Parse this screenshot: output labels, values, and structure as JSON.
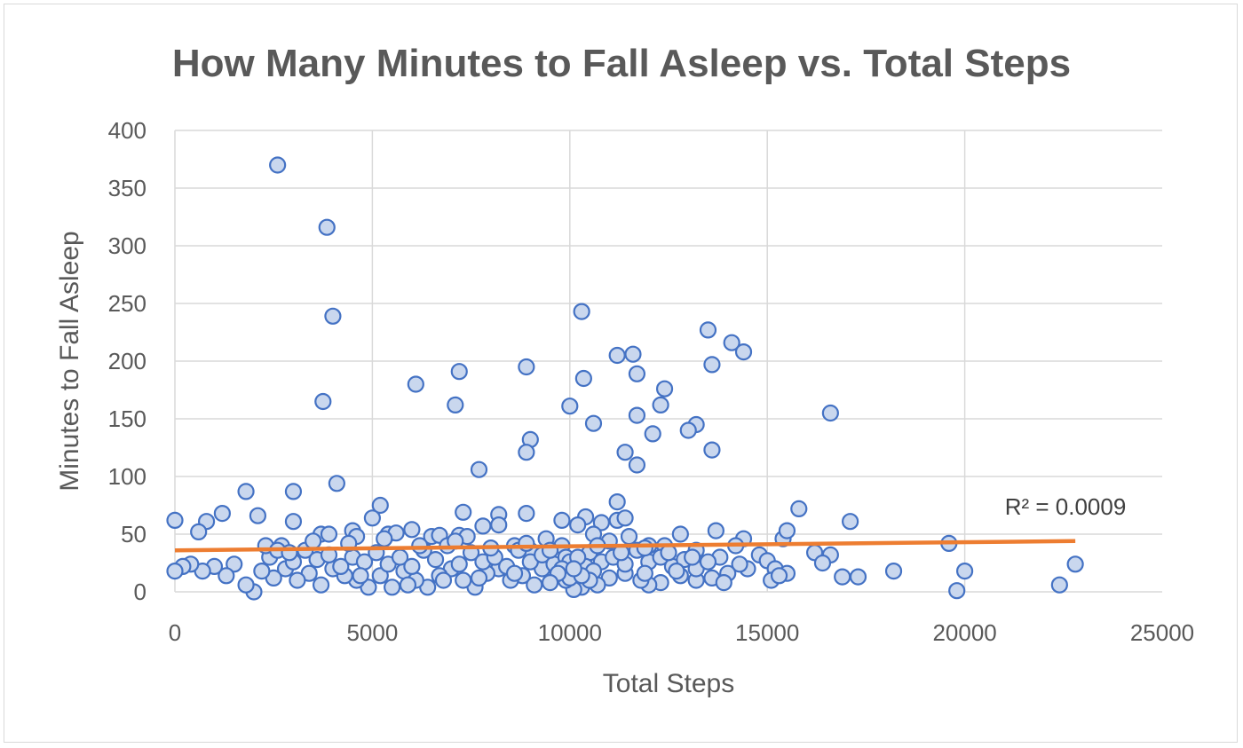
{
  "chart_data": {
    "type": "scatter",
    "title": "How Many Minutes to Fall Asleep vs. Total Steps",
    "xlabel": "Total Steps",
    "ylabel": "Minutes to Fall Asleep",
    "xlim": [
      0,
      25000
    ],
    "ylim": [
      0,
      400
    ],
    "xticks": [
      0,
      5000,
      10000,
      15000,
      20000,
      25000
    ],
    "yticks": [
      0,
      50,
      100,
      150,
      200,
      250,
      300,
      350,
      400
    ],
    "grid": true,
    "legend": "none",
    "colors": {
      "marker_stroke": "#4472c4",
      "marker_fill": "#c9d7ee",
      "trendline": "#ed7d31",
      "grid": "#d9d9d9",
      "text": "#595959"
    },
    "trendline": {
      "type": "linear",
      "points": [
        [
          0,
          36
        ],
        [
          22800,
          44
        ]
      ],
      "annotation": "R² = 0.0009"
    },
    "series": [
      {
        "name": "",
        "points": [
          [
            2600,
            370
          ],
          [
            3850,
            316
          ],
          [
            4000,
            239
          ],
          [
            3750,
            165
          ],
          [
            4100,
            94
          ],
          [
            5200,
            75
          ],
          [
            6100,
            180
          ],
          [
            7100,
            162
          ],
          [
            7200,
            191
          ],
          [
            7700,
            106
          ],
          [
            8900,
            195
          ],
          [
            9000,
            132
          ],
          [
            8900,
            121
          ],
          [
            10300,
            243
          ],
          [
            10350,
            185
          ],
          [
            10000,
            161
          ],
          [
            10600,
            146
          ],
          [
            11200,
            205
          ],
          [
            11600,
            206
          ],
          [
            11700,
            189
          ],
          [
            11700,
            153
          ],
          [
            11700,
            110
          ],
          [
            11400,
            121
          ],
          [
            12100,
            137
          ],
          [
            12300,
            162
          ],
          [
            12400,
            176
          ],
          [
            13500,
            227
          ],
          [
            14100,
            216
          ],
          [
            14400,
            208
          ],
          [
            13600,
            197
          ],
          [
            13200,
            145
          ],
          [
            13000,
            140
          ],
          [
            13600,
            123
          ],
          [
            16600,
            155
          ],
          [
            1800,
            87
          ],
          [
            3000,
            87
          ],
          [
            2100,
            66
          ],
          [
            3000,
            61
          ],
          [
            1200,
            68
          ],
          [
            800,
            61
          ],
          [
            600,
            52
          ],
          [
            0,
            62
          ],
          [
            7300,
            69
          ],
          [
            8200,
            67
          ],
          [
            8900,
            68
          ],
          [
            9800,
            62
          ],
          [
            10400,
            65
          ],
          [
            10800,
            60
          ],
          [
            11200,
            78
          ],
          [
            11200,
            62
          ],
          [
            11400,
            64
          ],
          [
            12800,
            50
          ],
          [
            13700,
            53
          ],
          [
            14400,
            46
          ],
          [
            15400,
            46
          ],
          [
            15500,
            53
          ],
          [
            15800,
            72
          ],
          [
            17100,
            61
          ],
          [
            16200,
            34
          ],
          [
            16600,
            32
          ],
          [
            16400,
            25
          ],
          [
            16900,
            13
          ],
          [
            17300,
            13
          ],
          [
            18200,
            18
          ],
          [
            19600,
            42
          ],
          [
            19800,
            1
          ],
          [
            20000,
            18
          ],
          [
            22400,
            6
          ],
          [
            22800,
            24
          ],
          [
            3700,
            50
          ],
          [
            3900,
            50
          ],
          [
            4500,
            53
          ],
          [
            4600,
            48
          ],
          [
            5000,
            64
          ],
          [
            5400,
            50
          ],
          [
            5600,
            51
          ],
          [
            6000,
            54
          ],
          [
            6500,
            48
          ],
          [
            6700,
            49
          ],
          [
            7200,
            49
          ],
          [
            7400,
            48
          ],
          [
            7800,
            57
          ],
          [
            8200,
            58
          ],
          [
            8600,
            40
          ],
          [
            9000,
            36
          ],
          [
            9400,
            46
          ],
          [
            9800,
            40
          ],
          [
            10200,
            58
          ],
          [
            10600,
            50
          ],
          [
            11000,
            44
          ],
          [
            11500,
            48
          ],
          [
            12000,
            40
          ],
          [
            12400,
            40
          ],
          [
            13200,
            36
          ],
          [
            13800,
            30
          ],
          [
            14800,
            32
          ],
          [
            15000,
            27
          ],
          [
            15200,
            20
          ],
          [
            15500,
            16
          ],
          [
            14500,
            20
          ],
          [
            14300,
            24
          ],
          [
            14000,
            16
          ],
          [
            13600,
            12
          ],
          [
            13200,
            10
          ],
          [
            12800,
            14
          ],
          [
            12300,
            8
          ],
          [
            12000,
            6
          ],
          [
            11800,
            10
          ],
          [
            11400,
            16
          ],
          [
            11000,
            12
          ],
          [
            10700,
            6
          ],
          [
            10300,
            4
          ],
          [
            10100,
            2
          ],
          [
            9900,
            10
          ],
          [
            9600,
            14
          ],
          [
            9300,
            20
          ],
          [
            9100,
            6
          ],
          [
            8800,
            14
          ],
          [
            8500,
            10
          ],
          [
            8200,
            20
          ],
          [
            7900,
            16
          ],
          [
            7600,
            4
          ],
          [
            7300,
            10
          ],
          [
            7000,
            20
          ],
          [
            6700,
            14
          ],
          [
            6400,
            4
          ],
          [
            6100,
            10
          ],
          [
            5800,
            18
          ],
          [
            5500,
            4
          ],
          [
            5200,
            14
          ],
          [
            4900,
            4
          ],
          [
            4600,
            10
          ],
          [
            4300,
            14
          ],
          [
            4000,
            20
          ],
          [
            3700,
            6
          ],
          [
            3400,
            16
          ],
          [
            3100,
            10
          ],
          [
            2800,
            20
          ],
          [
            2500,
            12
          ],
          [
            2200,
            18
          ],
          [
            2000,
            0
          ],
          [
            1800,
            6
          ],
          [
            1500,
            24
          ],
          [
            1300,
            14
          ],
          [
            1000,
            22
          ],
          [
            700,
            18
          ],
          [
            400,
            24
          ],
          [
            200,
            22
          ],
          [
            0,
            18
          ],
          [
            2400,
            30
          ],
          [
            2700,
            40
          ],
          [
            3000,
            26
          ],
          [
            3300,
            36
          ],
          [
            3600,
            28
          ],
          [
            3900,
            32
          ],
          [
            4200,
            22
          ],
          [
            4500,
            30
          ],
          [
            4800,
            26
          ],
          [
            5100,
            34
          ],
          [
            5400,
            24
          ],
          [
            5700,
            30
          ],
          [
            6000,
            22
          ],
          [
            6300,
            36
          ],
          [
            6600,
            28
          ],
          [
            6900,
            40
          ],
          [
            7200,
            24
          ],
          [
            7500,
            34
          ],
          [
            7800,
            26
          ],
          [
            8100,
            30
          ],
          [
            8400,
            22
          ],
          [
            8700,
            36
          ],
          [
            9000,
            26
          ],
          [
            9300,
            32
          ],
          [
            9600,
            24
          ],
          [
            9900,
            30
          ],
          [
            10200,
            20
          ],
          [
            10500,
            34
          ],
          [
            10800,
            26
          ],
          [
            11100,
            30
          ],
          [
            11400,
            24
          ],
          [
            11700,
            36
          ],
          [
            12000,
            26
          ],
          [
            12300,
            30
          ],
          [
            12600,
            22
          ],
          [
            12900,
            28
          ],
          [
            13200,
            20
          ],
          [
            13500,
            26
          ],
          [
            10000,
            26
          ],
          [
            10400,
            22
          ],
          [
            10600,
            18
          ],
          [
            9800,
            20
          ],
          [
            10200,
            30
          ],
          [
            10000,
            12
          ],
          [
            10500,
            10
          ],
          [
            9700,
            16
          ],
          [
            10300,
            14
          ],
          [
            10100,
            20
          ],
          [
            2300,
            40
          ],
          [
            2600,
            36
          ],
          [
            2900,
            34
          ],
          [
            3500,
            44
          ],
          [
            4400,
            42
          ],
          [
            5300,
            46
          ],
          [
            6200,
            40
          ],
          [
            7100,
            44
          ],
          [
            8000,
            38
          ],
          [
            8900,
            42
          ],
          [
            9500,
            36
          ],
          [
            10700,
            40
          ],
          [
            11300,
            34
          ],
          [
            11900,
            38
          ],
          [
            12500,
            34
          ],
          [
            13100,
            30
          ],
          [
            14200,
            40
          ],
          [
            4700,
            14
          ],
          [
            5900,
            6
          ],
          [
            6800,
            10
          ],
          [
            7700,
            12
          ],
          [
            8600,
            16
          ],
          [
            9500,
            8
          ],
          [
            11900,
            16
          ],
          [
            12700,
            18
          ],
          [
            13900,
            8
          ],
          [
            15100,
            10
          ],
          [
            15300,
            14
          ]
        ]
      }
    ]
  }
}
